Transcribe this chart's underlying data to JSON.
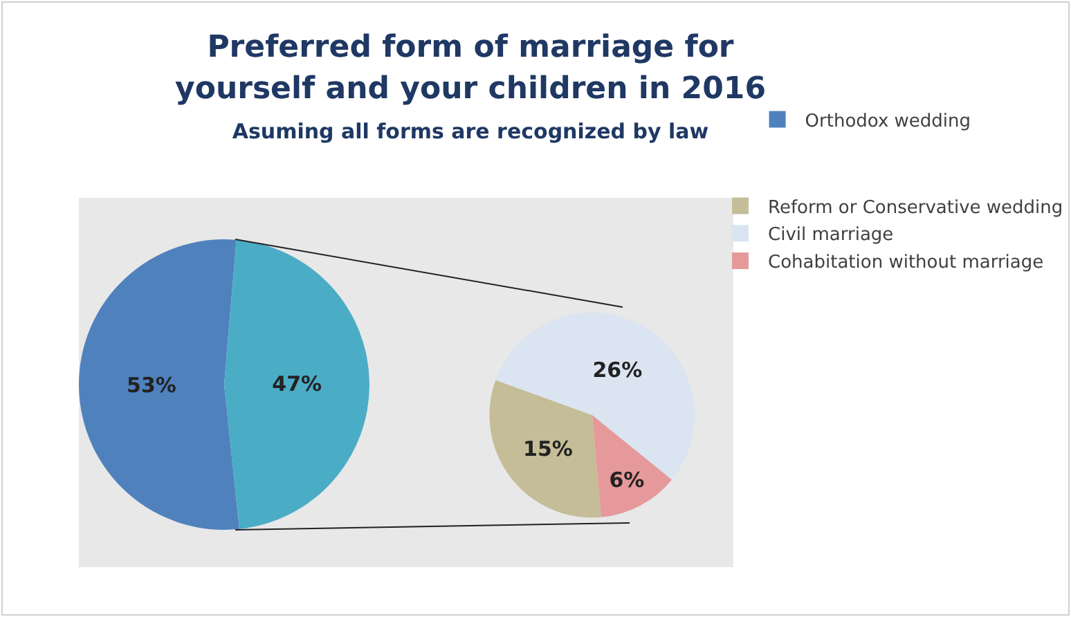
{
  "chart_data": [
    {
      "type": "pie",
      "title": "Preferred form of marriage for yourself and your children in 2016",
      "subtitle": "Asuming all forms are recognized by law",
      "categories": [
        "Orthodox wedding",
        null
      ],
      "values": [
        53,
        47
      ],
      "colors": [
        "#4f81bd",
        "#4bacc6"
      ],
      "value_labels": [
        "53%",
        "47%"
      ],
      "legend": "right"
    },
    {
      "type": "pie",
      "categories": [
        "Reform or Conservative wedding",
        "Civil marriage",
        "Cohabitation without marriage"
      ],
      "values": [
        15,
        26,
        6
      ],
      "colors": [
        "#c4bd97",
        "#dbe5f1",
        "#e6999a"
      ],
      "value_labels": [
        "15%",
        "26%",
        "6%"
      ],
      "legend": "right"
    }
  ]
}
